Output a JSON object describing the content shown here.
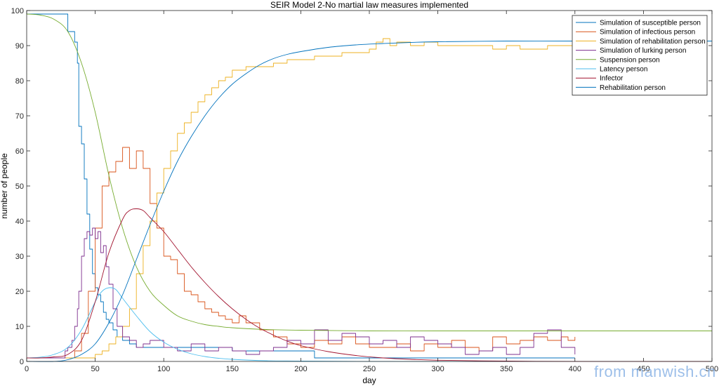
{
  "chart_data": {
    "type": "line",
    "title": "SEIR Model 2-No martial law measures implemented",
    "xlabel": "day",
    "ylabel": "number of people",
    "xlim": [
      0,
      500
    ],
    "ylim": [
      0,
      100
    ],
    "x_ticks": [
      0,
      50,
      100,
      150,
      200,
      250,
      300,
      350,
      400,
      450,
      500
    ],
    "y_ticks": [
      0,
      10,
      20,
      30,
      40,
      50,
      60,
      70,
      80,
      90,
      100
    ],
    "grid": false,
    "legend_position": "top-right",
    "series": [
      {
        "name": "Simulation of susceptible person",
        "color": "#0072BD",
        "style": "step",
        "x": [
          0,
          25,
          30,
          33,
          35,
          37,
          38,
          40,
          42,
          44,
          46,
          48,
          50,
          52,
          54,
          56,
          58,
          60,
          63,
          66,
          70,
          75,
          80,
          100,
          150,
          200,
          210,
          400
        ],
        "y": [
          99,
          99,
          94,
          94,
          91,
          85,
          67,
          62,
          52,
          42,
          32,
          25,
          21,
          19,
          17,
          14,
          12,
          11,
          9,
          7,
          6,
          5,
          4,
          4,
          3,
          3,
          1,
          1
        ]
      },
      {
        "name": "Simulation of infectious person",
        "color": "#D95319",
        "style": "step",
        "x": [
          0,
          30,
          35,
          40,
          45,
          50,
          55,
          60,
          65,
          70,
          75,
          80,
          85,
          90,
          95,
          100,
          105,
          110,
          115,
          120,
          125,
          130,
          135,
          140,
          145,
          150,
          155,
          160,
          170,
          180,
          190,
          200,
          210,
          220,
          230,
          240,
          250,
          260,
          270,
          280,
          290,
          300,
          310,
          320,
          330,
          340,
          350,
          360,
          370,
          380,
          390,
          395,
          400
        ],
        "y": [
          1,
          1,
          3,
          8,
          20,
          38,
          50,
          54,
          57,
          61,
          55,
          60,
          55,
          45,
          38,
          30,
          29,
          25,
          20,
          19,
          17,
          15,
          14,
          13,
          12,
          11,
          13,
          11,
          9,
          7,
          5,
          4,
          6,
          5,
          7,
          5,
          4,
          4,
          5,
          3,
          5,
          4,
          6,
          4,
          3,
          7,
          5,
          6,
          7,
          6,
          7,
          6,
          7
        ]
      },
      {
        "name": "Simulation of rehabilitation person",
        "color": "#EDB120",
        "style": "step",
        "x": [
          0,
          45,
          50,
          55,
          60,
          65,
          70,
          75,
          80,
          85,
          90,
          95,
          100,
          105,
          110,
          115,
          120,
          125,
          130,
          135,
          140,
          145,
          150,
          155,
          160,
          170,
          180,
          190,
          200,
          210,
          220,
          230,
          240,
          250,
          255,
          260,
          265,
          270,
          280,
          290,
          300,
          310,
          320,
          330,
          340,
          350,
          360,
          370,
          380,
          390,
          400
        ],
        "y": [
          1,
          1,
          2,
          3,
          5,
          7,
          10,
          15,
          25,
          33,
          40,
          48,
          55,
          60,
          65,
          68,
          71,
          74,
          76,
          78,
          80,
          81,
          83,
          83,
          84,
          84,
          85,
          86,
          86,
          87,
          87,
          88,
          88,
          89,
          91,
          92,
          90,
          91,
          90,
          91,
          90,
          90,
          90,
          90,
          89,
          90,
          89,
          89,
          90,
          90,
          91
        ]
      },
      {
        "name": "Simulation of lurking person",
        "color": "#7E2F8E",
        "style": "step",
        "x": [
          0,
          25,
          28,
          30,
          33,
          35,
          37,
          38,
          40,
          42,
          44,
          46,
          48,
          50,
          52,
          54,
          56,
          58,
          60,
          63,
          66,
          70,
          75,
          80,
          85,
          90,
          100,
          110,
          120,
          130,
          140,
          150,
          160,
          170,
          180,
          190,
          200,
          210,
          220,
          230,
          240,
          250,
          260,
          270,
          280,
          290,
          300,
          310,
          320,
          330,
          340,
          350,
          360,
          370,
          380,
          390,
          400
        ],
        "y": [
          1,
          1,
          3,
          4,
          6,
          10,
          15,
          20,
          30,
          35,
          37,
          36,
          38,
          35,
          37,
          31,
          33,
          27,
          22,
          15,
          10,
          7,
          6,
          4,
          5,
          6,
          4,
          3,
          5,
          3,
          4,
          3,
          2,
          3,
          4,
          6,
          5,
          9,
          6,
          8,
          7,
          5,
          6,
          4,
          7,
          6,
          5,
          4,
          2,
          3,
          4,
          2,
          4,
          8,
          9,
          4,
          2
        ]
      },
      {
        "name": "Suspension person",
        "color": "#77AC30",
        "style": "smooth",
        "x": [
          0,
          10,
          20,
          30,
          40,
          50,
          60,
          70,
          80,
          90,
          100,
          110,
          120,
          130,
          140,
          150,
          175,
          200,
          250,
          300,
          350,
          400,
          450,
          500
        ],
        "y": [
          99,
          98.7,
          97.5,
          94,
          85,
          71,
          53,
          38,
          27,
          20,
          16,
          13,
          11.5,
          10.5,
          10,
          9.6,
          9.1,
          8.9,
          8.7,
          8.7,
          8.7,
          8.7,
          8.7,
          8.7
        ]
      },
      {
        "name": "Latency person",
        "color": "#4DBEEE",
        "style": "smooth",
        "x": [
          0,
          10,
          20,
          30,
          40,
          50,
          55,
          60,
          65,
          70,
          80,
          90,
          100,
          110,
          120,
          130,
          140,
          150,
          175,
          200,
          250,
          300,
          350,
          400,
          450,
          500
        ],
        "y": [
          1,
          1.2,
          2,
          4,
          9,
          17,
          20,
          21,
          20.5,
          18,
          13,
          8.5,
          5.5,
          3.5,
          2.2,
          1.4,
          0.9,
          0.6,
          0.2,
          0.1,
          0,
          0,
          0,
          0,
          0,
          0
        ]
      },
      {
        "name": "Infector",
        "color": "#A2142F",
        "style": "smooth",
        "x": [
          0,
          10,
          20,
          30,
          40,
          50,
          60,
          70,
          75,
          80,
          85,
          90,
          100,
          110,
          120,
          130,
          140,
          150,
          160,
          170,
          180,
          190,
          200,
          220,
          240,
          260,
          280,
          300,
          350,
          400,
          450,
          500
        ],
        "y": [
          1,
          1,
          1.3,
          2,
          6,
          17,
          31,
          40.5,
          43,
          43.5,
          43,
          41,
          37,
          32,
          27,
          22.5,
          18.5,
          15,
          12,
          9.5,
          7.5,
          5.8,
          4.5,
          2.8,
          1.7,
          1,
          0.6,
          0.35,
          0.1,
          0,
          0,
          0
        ]
      },
      {
        "name": "Rehabilitation person",
        "color": "#0072BD",
        "style": "smooth",
        "x": [
          0,
          20,
          30,
          40,
          50,
          60,
          70,
          80,
          90,
          100,
          110,
          120,
          130,
          140,
          150,
          160,
          170,
          180,
          190,
          200,
          220,
          240,
          260,
          280,
          300,
          350,
          400,
          450,
          500
        ],
        "y": [
          0,
          0,
          0.5,
          2,
          5,
          11,
          19,
          29,
          39,
          48.5,
          57,
          64,
          70,
          75,
          79,
          82,
          84.5,
          86.3,
          87.5,
          88.3,
          89.5,
          90.2,
          90.6,
          90.9,
          91.1,
          91.3,
          91.3,
          91.3,
          91.3
        ]
      }
    ]
  },
  "watermark": {
    "text": "from manwish.cn"
  }
}
